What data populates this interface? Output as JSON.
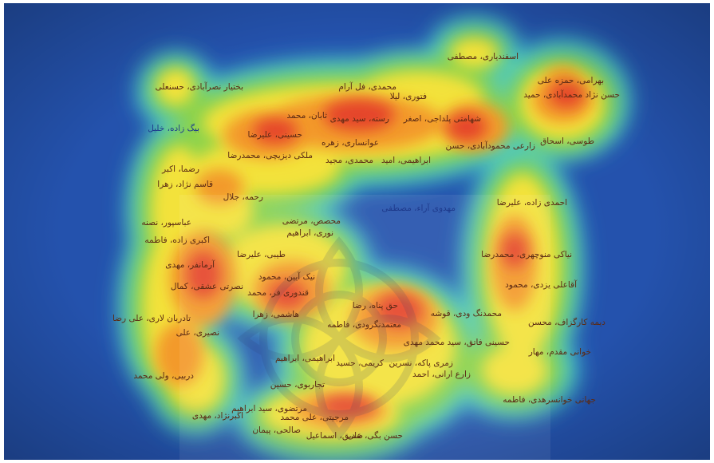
{
  "map": {
    "labels": [
      "اسفندیاری، مصطفی",
      "بهرامی، حمزه علی",
      "حسن نژاد محمدآبادی، حمید",
      "محمدی، فل آرام",
      "فتوری، لیلا",
      "بختیار نصرآبادی، حسنعلی",
      "بیگ زاده، خلیل",
      "ثابان، محمد",
      "رسته، سید مهدی",
      "شهامتی پلداجی، اصغر",
      "حسینی، علیرضا",
      "طوسی، اسحاق",
      "عوانساری، زهره",
      "زارعی محمودآبادی، حسن",
      "ملکی دیزیچی، محمدرضا",
      "محمدی، مجید",
      "ابراهیمی، امید",
      "رضما، اکبر",
      "قاسم نژاد، زهرا",
      "رحمه، جلال",
      "احمدی زاده، علیرضا",
      "مهدوی آراء، مصطفی",
      "عباسپور، نصنه",
      "محصص، مرتضی",
      "نوری، ابراهیم",
      "اکبری زاده، فاطمه",
      "طیبی، علیرضا",
      "نیاکی منوچهری، محمدرضا",
      "آرمانفر، مهدی",
      "نیک آیین، محمود",
      "آقاعلی یزدی، محمود",
      "نصرتی عشقی، کمال",
      "قندوری فر، محمد",
      "حق پناه، رضا",
      "محمدنگ ودی، قوشه",
      "تادربان لاری، علی رضا",
      "هاشمی، زهرا",
      "معتمدنگرودی، فاطمه",
      "دیمه کارگزاف، محسن",
      "نصیری، علی",
      "حسینی فاتق، سید محمد مهدی",
      "خوانی مقدم، مهار",
      "ابراهیمی، ابراهیم",
      "کریمی، حسید",
      "زمری پاکه، نسرین",
      "دربیی، ولی محمد",
      "تجاربوی، حسین",
      "زارع ارانی، احمد",
      "جهانی خوانسرهدی، فاطمه",
      "اکبرنژاد، مهدی",
      "مرتضوی، سید ابراهیم",
      "مرجیتی، علی محمد",
      "صالحی، پیمان",
      "صدیق، اسماعیل",
      "حسن بگی، علی"
    ]
  }
}
